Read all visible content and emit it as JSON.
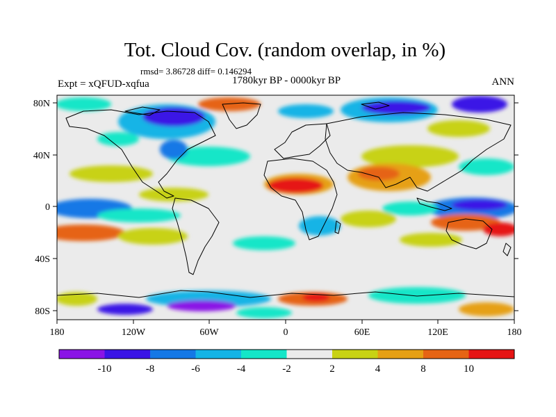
{
  "title": "Tot. Cloud Cov. (random overlap, in %)",
  "stats": "rmsd= 3.86728 diff= 0.146294",
  "experiment": "Expt = xQFUD-xqfua",
  "period": "1780kyr BP - 0000kyr BP",
  "season": "ANN",
  "lat_ticks": [
    "80N",
    "40N",
    "0",
    "40S",
    "80S"
  ],
  "lon_ticks": [
    "180",
    "120W",
    "60W",
    "0",
    "60E",
    "120E",
    "180"
  ],
  "colorbar": {
    "labels": [
      "-10",
      "-8",
      "-6",
      "-4",
      "-2",
      "2",
      "4",
      "8",
      "10"
    ],
    "colors": [
      "#8a14e6",
      "#3a14e6",
      "#1478e6",
      "#14b4e6",
      "#14e6c8",
      "#ebebeb",
      "#c8d214",
      "#e6a014",
      "#e66414",
      "#e61414"
    ]
  }
}
